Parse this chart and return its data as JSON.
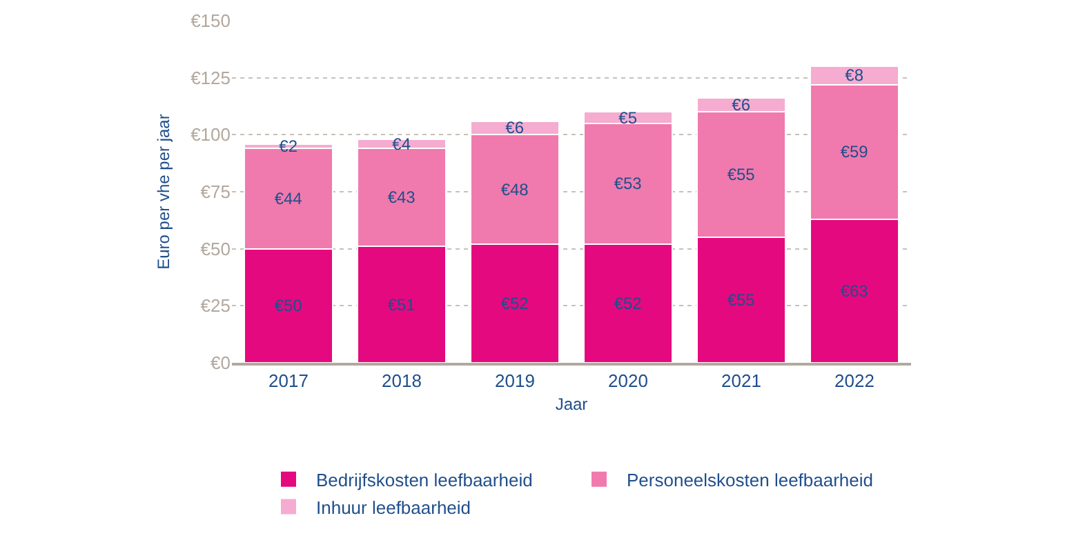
{
  "chart_data": {
    "type": "bar",
    "stacked": true,
    "xlabel": "Jaar",
    "ylabel": "Euro per vhe per jaar",
    "categories": [
      "2017",
      "2018",
      "2019",
      "2020",
      "2021",
      "2022"
    ],
    "series": [
      {
        "name": "Bedrijfskosten leefbaarheid",
        "color": "#e5097f",
        "values": [
          50,
          51,
          52,
          52,
          55,
          63
        ],
        "value_labels": [
          "€50",
          "€51",
          "€52",
          "€52",
          "€55",
          "€63"
        ]
      },
      {
        "name": "Personeelskosten leefbaarheid",
        "color": "#f07aad",
        "values": [
          44,
          43,
          48,
          53,
          55,
          59
        ],
        "value_labels": [
          "€44",
          "€43",
          "€48",
          "€53",
          "€55",
          "€59"
        ]
      },
      {
        "name": "Inhuur leefbaarheid",
        "color": "#f5acd0",
        "values": [
          2,
          4,
          6,
          5,
          6,
          8
        ],
        "value_labels": [
          "€2",
          "€4",
          "€6",
          "€5",
          "€6",
          "€8"
        ]
      }
    ],
    "ylim": [
      0,
      150
    ],
    "yticks": [
      {
        "value": 0,
        "label": "€0"
      },
      {
        "value": 25,
        "label": "€25"
      },
      {
        "value": 50,
        "label": "€50"
      },
      {
        "value": 75,
        "label": "€75"
      },
      {
        "value": 100,
        "label": "€100"
      },
      {
        "value": 125,
        "label": "€125"
      },
      {
        "value": 150,
        "label": "€150"
      }
    ],
    "grid": "y",
    "legend": "bottom"
  }
}
